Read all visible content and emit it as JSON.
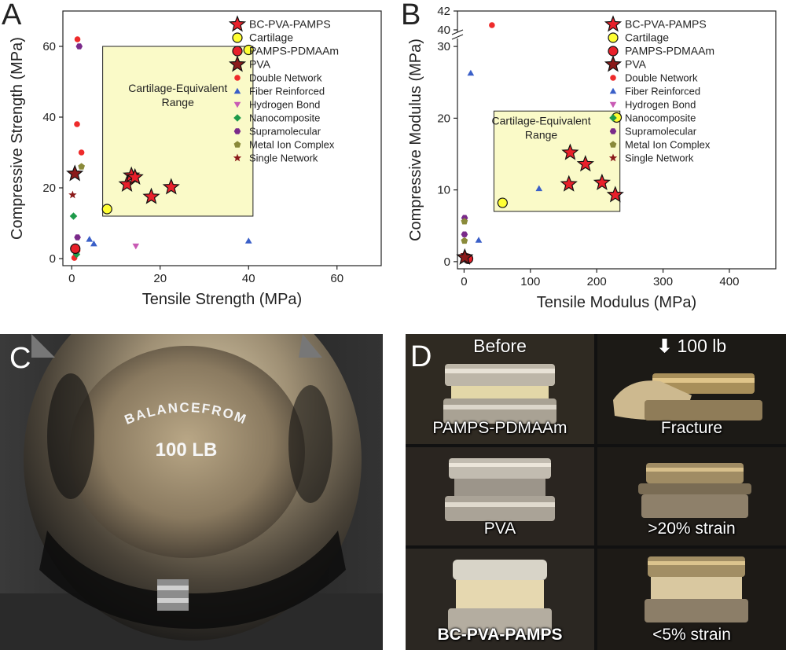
{
  "panels": {
    "a": "A",
    "b": "B",
    "c": "C",
    "d": "D"
  },
  "legend_entries": [
    {
      "name": "BC-PVA-PAMPS",
      "marker": "star-big",
      "color": "#e8202a"
    },
    {
      "name": "Cartilage",
      "marker": "circle-big",
      "color": "#ffff33"
    },
    {
      "name": "PAMPS-PDMAAm",
      "marker": "circle-big",
      "color": "#e8202a"
    },
    {
      "name": "PVA",
      "marker": "star-big",
      "color": "#8b1a1a"
    },
    {
      "name": "Double Network",
      "marker": "circle",
      "color": "#ee2b2b"
    },
    {
      "name": "Fiber Reinforced",
      "marker": "triangle",
      "color": "#3a5fc8"
    },
    {
      "name": "Hydrogen Bond",
      "marker": "triangle-down",
      "color": "#c85ab4"
    },
    {
      "name": "Nanocomposite",
      "marker": "diamond",
      "color": "#1e9a4a"
    },
    {
      "name": "Supramolecular",
      "marker": "hexagon",
      "color": "#7a2a8a"
    },
    {
      "name": "Metal Ion Complex",
      "marker": "pentagon",
      "color": "#8a8a3a"
    },
    {
      "name": "Single Network",
      "marker": "star",
      "color": "#8b1a1a"
    }
  ],
  "chart_data": [
    {
      "type": "scatter",
      "xlabel": "Tensile Strength (MPa)",
      "ylabel": "Compressive Strength (MPa)",
      "xlim": [
        -2,
        70
      ],
      "ylim": [
        -2,
        70
      ],
      "xticks": [
        0,
        20,
        40,
        60
      ],
      "yticks": [
        0,
        20,
        40,
        60
      ],
      "legend": "right",
      "region": {
        "label_line1": "Cartilage-Equivalent",
        "label_line2": "Range",
        "x": [
          7,
          41
        ],
        "y": [
          12,
          60
        ]
      },
      "series": [
        {
          "name": "BC-PVA-PAMPS",
          "x": [
            12.5,
            13.5,
            14.3,
            18,
            22.5
          ],
          "y": [
            21,
            23.5,
            23,
            17.5,
            20.2
          ]
        },
        {
          "name": "Cartilage",
          "x": [
            8,
            40
          ],
          "y": [
            14,
            59
          ]
        },
        {
          "name": "PAMPS-PDMAAm",
          "x": [
            0.8
          ],
          "y": [
            2.8
          ]
        },
        {
          "name": "PVA",
          "x": [
            0.7
          ],
          "y": [
            24
          ]
        },
        {
          "name": "Double Network",
          "x": [
            1.3,
            1.2,
            2.2,
            0.6,
            1.3
          ],
          "y": [
            62,
            38,
            30,
            0.2,
            2.3
          ]
        },
        {
          "name": "Fiber Reinforced",
          "x": [
            4,
            5,
            40
          ],
          "y": [
            5.5,
            4.2,
            5
          ]
        },
        {
          "name": "Hydrogen Bond",
          "x": [
            14.5
          ],
          "y": [
            3.5
          ]
        },
        {
          "name": "Nanocomposite",
          "x": [
            0.4,
            1.1
          ],
          "y": [
            12,
            1.2
          ]
        },
        {
          "name": "Supramolecular",
          "x": [
            1.7,
            1.3
          ],
          "y": [
            60,
            6
          ]
        },
        {
          "name": "Metal Ion Complex",
          "x": [
            2.2
          ],
          "y": [
            26
          ]
        },
        {
          "name": "Single Network",
          "x": [
            0.2
          ],
          "y": [
            18
          ]
        }
      ]
    },
    {
      "type": "scatter",
      "xlabel": "Tensile Modulus (MPa)",
      "ylabel": "Compressive Modulus (MPa)",
      "xlim": [
        -10,
        470
      ],
      "ylim": [
        -1,
        31
      ],
      "ylim_upper_segment": [
        40,
        42
      ],
      "axis_break": true,
      "xticks": [
        0,
        100,
        200,
        300,
        400
      ],
      "yticks": [
        0,
        10,
        20,
        30
      ],
      "yticks_upper_segment": [
        40,
        42
      ],
      "legend": "right",
      "region": {
        "label_line1": "Cartilage-Equivalent",
        "label_line2": "Range",
        "x": [
          45,
          235
        ],
        "y": [
          7,
          21
        ]
      },
      "series": [
        {
          "name": "BC-PVA-PAMPS",
          "x": [
            158,
            160,
            183,
            208,
            228
          ],
          "y": [
            10.8,
            15.2,
            13.6,
            11,
            9.3
          ]
        },
        {
          "name": "Cartilage",
          "x": [
            58,
            230
          ],
          "y": [
            8.2,
            20.1
          ]
        },
        {
          "name": "PAMPS-PDMAAm",
          "x": [
            6
          ],
          "y": [
            0.4
          ]
        },
        {
          "name": "PVA",
          "x": [
            1
          ],
          "y": [
            0.6
          ]
        },
        {
          "name": "Double Network",
          "x": [
            42,
            3
          ],
          "y": [
            40.5,
            0.3
          ]
        },
        {
          "name": "Fiber Reinforced",
          "x": [
            10,
            113,
            22
          ],
          "y": [
            26.3,
            10.2,
            3
          ]
        },
        {
          "name": "Hydrogen Bond",
          "x": [],
          "y": []
        },
        {
          "name": "Nanocomposite",
          "x": [
            0.5
          ],
          "y": [
            0.8
          ]
        },
        {
          "name": "Supramolecular",
          "x": [
            0.8,
            0.6
          ],
          "y": [
            6.1,
            3.8
          ]
        },
        {
          "name": "Metal Ion Complex",
          "x": [
            0.5,
            0.5
          ],
          "y": [
            5.6,
            2.9
          ]
        },
        {
          "name": "Single Network",
          "x": [
            0.3
          ],
          "y": [
            1
          ]
        }
      ]
    }
  ],
  "photo_c": {
    "brand": "BALANCEFROM",
    "weight": "100 LB"
  },
  "photo_d": {
    "col_before": "Before",
    "col_load": "100 lb",
    "tiles": [
      "PAMPS-PDMAAm",
      "Fracture",
      "PVA",
      ">20% strain",
      "BC-PVA-PAMPS",
      "<5% strain"
    ]
  }
}
